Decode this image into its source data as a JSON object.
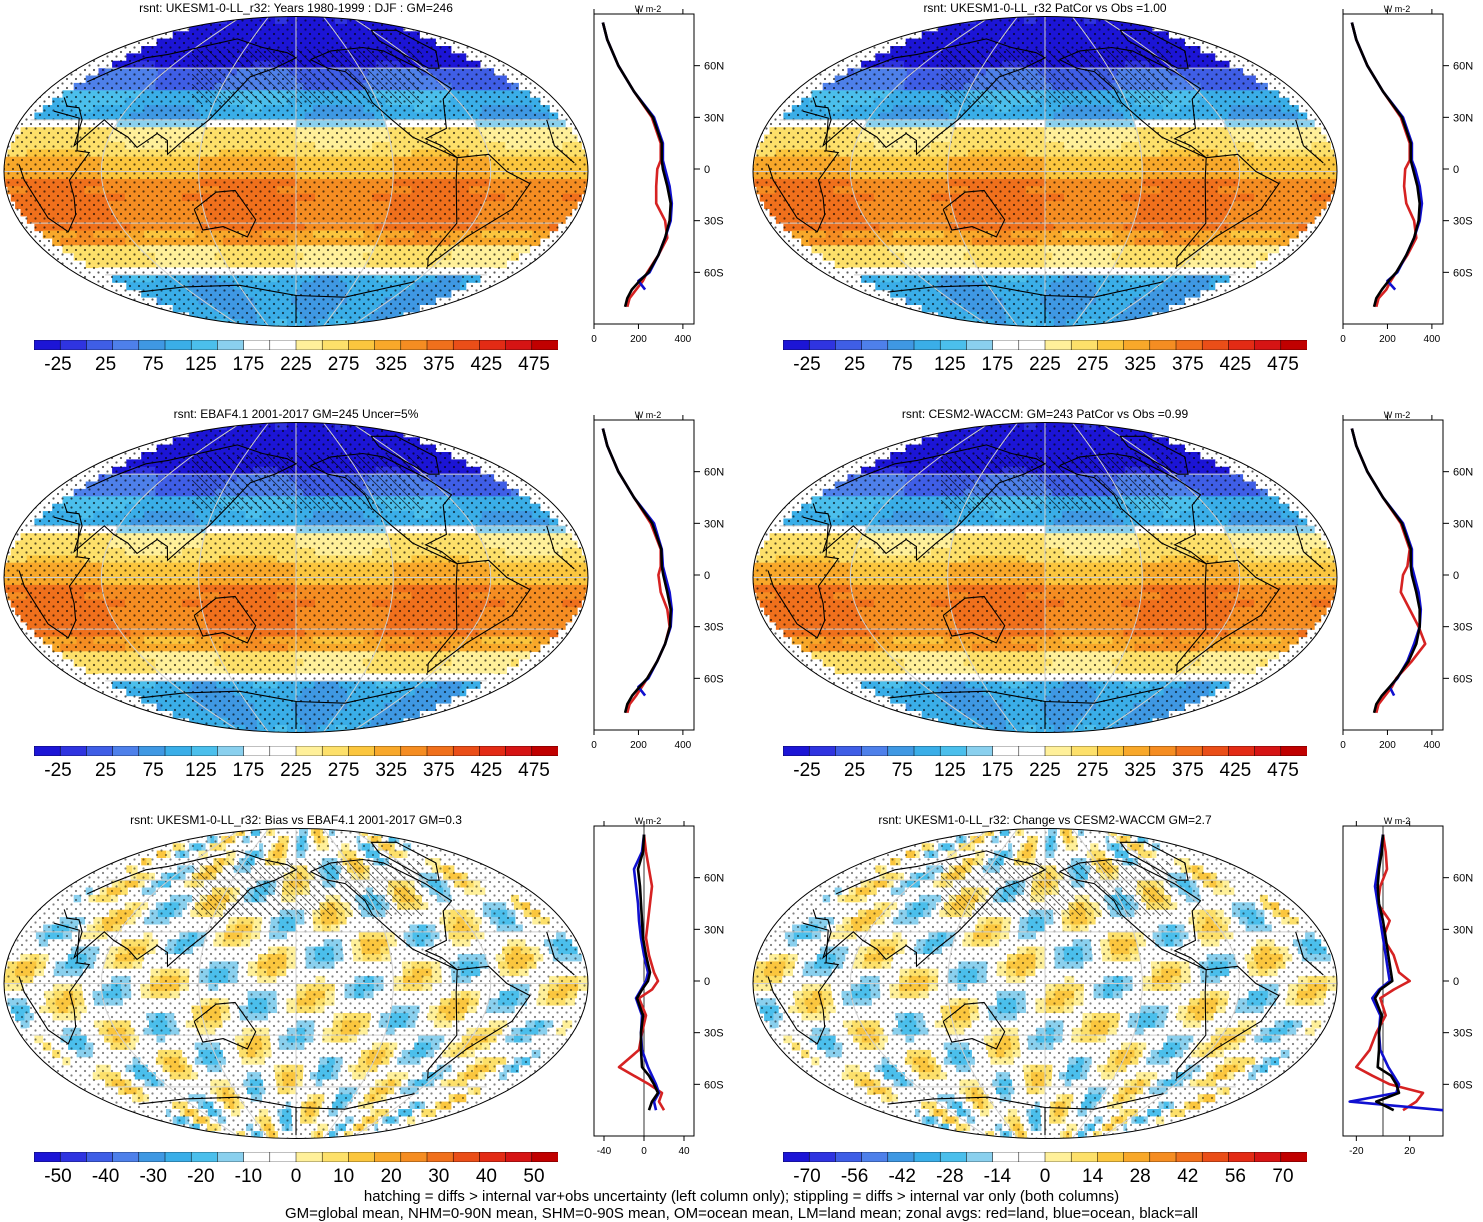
{
  "colors": {
    "seq": [
      "#1c15d6",
      "#2f34e0",
      "#3f5ee6",
      "#4e80ea",
      "#3f98e3",
      "#3aaee8",
      "#4bbfec",
      "#8ad0ee",
      "#ffffff",
      "#ffffff",
      "#fff09a",
      "#fde06a",
      "#fbc63e",
      "#f8a82a",
      "#f58d22",
      "#f0701c",
      "#ea4e18",
      "#e32b15",
      "#d61414",
      "#c00000"
    ],
    "div": [
      "#1c15d6",
      "#2f34e0",
      "#3f5ee6",
      "#4e80ea",
      "#3f98e3",
      "#3aaee8",
      "#4bbfec",
      "#8ad0ee",
      "#ffffff",
      "#ffffff",
      "#fff09a",
      "#fde06a",
      "#fbc63e",
      "#f8a82a",
      "#f58d22",
      "#f0701c",
      "#ea4e18",
      "#e32b15",
      "#d61414",
      "#c00000"
    ],
    "land": "#d62222",
    "ocean": "#1010d0",
    "all": "#000000"
  },
  "chart_data": [
    {
      "type": "heatmap",
      "title": "rsnt: UKESM1-0-LL_r32: Years 1980-1999 : DJF : GM=246",
      "field": "mean",
      "colorbar_ticks": [
        "-25",
        "25",
        "75",
        "125",
        "175",
        "225",
        "275",
        "325",
        "375",
        "425",
        "475"
      ],
      "zonal": {
        "unit": "W m-2",
        "xlim": [
          0,
          450
        ],
        "xticks": [
          "0",
          "200",
          "400"
        ],
        "lat_ticks": [
          "60N",
          "30N",
          "0",
          "30S",
          "60S"
        ],
        "lat": [
          85,
          75,
          60,
          45,
          30,
          15,
          5,
          0,
          -10,
          -20,
          -30,
          -40,
          -50,
          -60,
          -65,
          -70,
          -75,
          -80
        ],
        "land": [
          40,
          60,
          110,
          180,
          260,
          300,
          300,
          285,
          280,
          280,
          320,
          330,
          290,
          240,
          220,
          190,
          160,
          150
        ],
        "ocean": [
          40,
          60,
          110,
          180,
          270,
          310,
          310,
          320,
          340,
          350,
          345,
          320,
          290,
          250,
          200,
          230,
          null,
          null
        ],
        "all": [
          40,
          60,
          110,
          180,
          265,
          305,
          305,
          310,
          330,
          345,
          340,
          320,
          290,
          245,
          205,
          170,
          150,
          140
        ]
      }
    },
    {
      "type": "heatmap",
      "title": "rsnt: UKESM1-0-LL_r32 PatCor vs Obs =1.00",
      "field": "mean",
      "colorbar_ticks": [
        "-25",
        "25",
        "75",
        "125",
        "175",
        "225",
        "275",
        "325",
        "375",
        "425",
        "475"
      ],
      "zonal": {
        "unit": "W m-2",
        "xlim": [
          0,
          450
        ],
        "xticks": [
          "0",
          "200",
          "400"
        ],
        "lat_ticks": [
          "60N",
          "30N",
          "0",
          "30S",
          "60S"
        ],
        "lat": [
          85,
          75,
          60,
          45,
          30,
          15,
          5,
          0,
          -10,
          -20,
          -30,
          -40,
          -50,
          -60,
          -65,
          -70,
          -75,
          -80
        ],
        "land": [
          40,
          60,
          110,
          180,
          260,
          300,
          300,
          280,
          275,
          285,
          320,
          330,
          290,
          240,
          215,
          195,
          160,
          150
        ],
        "ocean": [
          40,
          60,
          110,
          180,
          270,
          310,
          310,
          325,
          345,
          355,
          345,
          320,
          285,
          245,
          200,
          235,
          null,
          null
        ],
        "all": [
          40,
          60,
          110,
          180,
          265,
          305,
          305,
          315,
          335,
          345,
          340,
          320,
          285,
          240,
          205,
          175,
          150,
          140
        ]
      }
    },
    {
      "type": "heatmap",
      "title": "rsnt: EBAF4.1 2001-2017 GM=245 Uncer=5%",
      "field": "mean",
      "colorbar_ticks": [
        "-25",
        "25",
        "75",
        "125",
        "175",
        "225",
        "275",
        "325",
        "375",
        "425",
        "475"
      ],
      "zonal": {
        "unit": "W m-2",
        "xlim": [
          0,
          450
        ],
        "xticks": [
          "0",
          "200",
          "400"
        ],
        "lat_ticks": [
          "60N",
          "30N",
          "0",
          "30S",
          "60S"
        ],
        "lat": [
          85,
          75,
          60,
          45,
          30,
          15,
          5,
          0,
          -10,
          -20,
          -30,
          -40,
          -50,
          -60,
          -65,
          -70,
          -75,
          -80
        ],
        "land": [
          40,
          60,
          110,
          180,
          255,
          300,
          300,
          290,
          300,
          330,
          340,
          320,
          285,
          240,
          215,
          190,
          160,
          150
        ],
        "ocean": [
          40,
          60,
          110,
          180,
          270,
          305,
          310,
          320,
          340,
          350,
          345,
          320,
          285,
          245,
          200,
          230,
          null,
          null
        ],
        "all": [
          40,
          60,
          110,
          180,
          262,
          303,
          305,
          312,
          330,
          345,
          342,
          320,
          285,
          240,
          205,
          172,
          150,
          140
        ]
      }
    },
    {
      "type": "heatmap",
      "title": "rsnt: CESM2-WACCM: GM=243 PatCor vs Obs =0.99",
      "field": "mean",
      "colorbar_ticks": [
        "-25",
        "25",
        "75",
        "125",
        "175",
        "225",
        "275",
        "325",
        "375",
        "425",
        "475"
      ],
      "zonal": {
        "unit": "W m-2",
        "xlim": [
          0,
          450
        ],
        "xticks": [
          "0",
          "200",
          "400"
        ],
        "lat_ticks": [
          "60N",
          "30N",
          "0",
          "30S",
          "60S"
        ],
        "lat": [
          85,
          75,
          60,
          45,
          30,
          15,
          5,
          0,
          -10,
          -20,
          -30,
          -40,
          -50,
          -60,
          -65,
          -70,
          -75,
          -80
        ],
        "land": [
          40,
          60,
          110,
          180,
          260,
          300,
          290,
          270,
          260,
          300,
          340,
          370,
          310,
          240,
          220,
          190,
          160,
          150
        ],
        "ocean": [
          40,
          60,
          110,
          180,
          270,
          310,
          310,
          320,
          340,
          350,
          345,
          320,
          290,
          245,
          210,
          230,
          null,
          null
        ],
        "all": [
          40,
          60,
          110,
          180,
          265,
          305,
          305,
          310,
          330,
          345,
          345,
          330,
          295,
          242,
          210,
          175,
          150,
          140
        ]
      }
    },
    {
      "type": "heatmap",
      "title": "rsnt: UKESM1-0-LL_r32: Bias vs EBAF4.1 2001-2017 GM=0.3",
      "field": "diff",
      "colorbar_ticks": [
        "-50",
        "-40",
        "-30",
        "-20",
        "-10",
        "0",
        "10",
        "20",
        "30",
        "40",
        "50"
      ],
      "zonal": {
        "unit": "W m-2",
        "xlim": [
          -50,
          50
        ],
        "xticks": [
          "-40",
          "0",
          "40"
        ],
        "lat_ticks": [
          "60N",
          "30N",
          "0",
          "30S",
          "60S"
        ],
        "lat": [
          85,
          75,
          65,
          55,
          45,
          35,
          25,
          15,
          5,
          0,
          -5,
          -10,
          -20,
          -30,
          -40,
          -50,
          -55,
          -60,
          -65,
          -70,
          -75
        ],
        "land": [
          0,
          2,
          5,
          8,
          6,
          4,
          2,
          5,
          10,
          14,
          8,
          -5,
          2,
          -2,
          -5,
          -25,
          -10,
          5,
          18,
          15,
          20
        ],
        "ocean": [
          0,
          -2,
          -10,
          -8,
          -6,
          -5,
          -3,
          0,
          4,
          2,
          -3,
          -8,
          -2,
          -3,
          -2,
          4,
          8,
          12,
          15,
          10,
          12
        ],
        "all": [
          0,
          -1,
          -6,
          -4,
          -3,
          -2,
          -1,
          2,
          6,
          4,
          -2,
          -7,
          -1,
          -3,
          -3,
          -2,
          5,
          10,
          14,
          8,
          5
        ]
      }
    },
    {
      "type": "heatmap",
      "title": "rsnt: UKESM1-0-LL_r32: Change vs CESM2-WACCM GM=2.7",
      "field": "diff",
      "colorbar_ticks": [
        "-70",
        "-56",
        "-42",
        "-28",
        "-14",
        "0",
        "14",
        "28",
        "42",
        "56",
        "70"
      ],
      "zonal": {
        "unit": "W m-2",
        "xlim": [
          -30,
          45
        ],
        "xticks": [
          "-20",
          "20"
        ],
        "lat_ticks": [
          "60N",
          "30N",
          "0",
          "30S",
          "60S"
        ],
        "lat": [
          85,
          75,
          65,
          55,
          45,
          35,
          25,
          15,
          5,
          0,
          -5,
          -10,
          -20,
          -30,
          -40,
          -50,
          -55,
          -60,
          -65,
          -70,
          -75
        ],
        "land": [
          0,
          2,
          3,
          -2,
          -4,
          5,
          0,
          8,
          12,
          20,
          8,
          -2,
          2,
          -5,
          -10,
          -20,
          -8,
          5,
          30,
          25,
          15
        ],
        "ocean": [
          0,
          -2,
          -4,
          -6,
          -4,
          -2,
          0,
          2,
          4,
          5,
          -3,
          -8,
          -2,
          -3,
          -2,
          4,
          8,
          12,
          10,
          -25,
          45
        ],
        "all": [
          0,
          -1,
          -3,
          -4,
          -3,
          0,
          2,
          4,
          6,
          7,
          -2,
          -6,
          -1,
          -3,
          -3,
          -4,
          6,
          10,
          12,
          -5,
          8
        ]
      }
    }
  ],
  "footer": {
    "line1": "hatching = diffs > internal var+obs uncertainty (left column only); stippling = diffs > internal var only (both columns)",
    "line2": "GM=global mean, NHM=0-90N mean, SHM=0-90S mean, OM=ocean mean, LM=land mean; zonal avgs: red=land, blue=ocean, black=all"
  }
}
